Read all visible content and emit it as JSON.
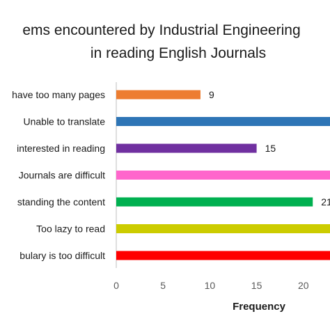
{
  "chart_data": {
    "type": "bar",
    "orientation": "horizontal",
    "title_lines": [
      "ems encountered by Industrial Engineering",
      "in reading English Journals"
    ],
    "categories": [
      "have too many pages",
      "Unable to translate",
      "interested in reading",
      "Journals are difficult",
      "standing the content",
      "Too lazy to read",
      "bulary is too difficult"
    ],
    "values": [
      9,
      26,
      15,
      26,
      21,
      26,
      26
    ],
    "data_labels": [
      "9",
      "",
      "15",
      "",
      "21",
      "",
      ""
    ],
    "colors": [
      "#ED7D31",
      "#2E75B6",
      "#7030A0",
      "#FF66CC",
      "#00B050",
      "#CCCC00",
      "#FF0000"
    ],
    "xlabel": "Frequency",
    "ylabel": "",
    "xticks": [
      "0",
      "5",
      "10",
      "15",
      "20"
    ],
    "xlim": [
      0,
      25
    ],
    "grid": false,
    "legend": "none"
  }
}
